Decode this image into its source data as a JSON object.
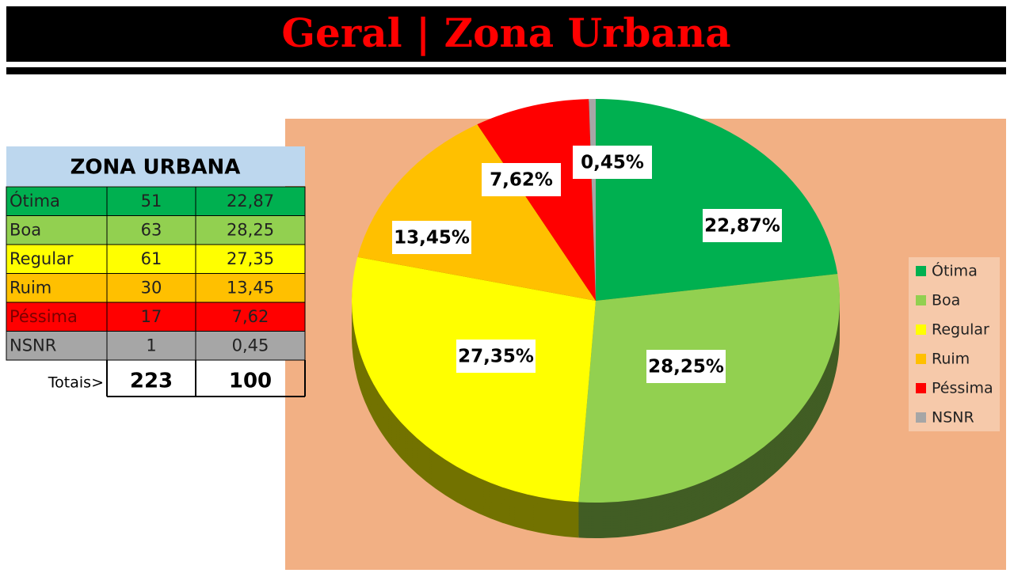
{
  "title": "Geral | Zona Urbana",
  "table": {
    "header": "ZONA URBANA",
    "rows": [
      [
        "Ótima",
        "51",
        "22,87"
      ],
      [
        "Boa",
        "63",
        "28,25"
      ],
      [
        "Regular",
        "61",
        "27,35"
      ],
      [
        "Ruim",
        "30",
        "13,45"
      ],
      [
        "Péssima",
        "17",
        "7,62"
      ],
      [
        "NSNR",
        "1",
        "0,45"
      ]
    ],
    "totals": [
      "Totais>",
      "223",
      "100"
    ]
  },
  "chart_data": {
    "type": "pie",
    "categories": [
      "Ótima",
      "Boa",
      "Regular",
      "Ruim",
      "Péssima",
      "NSNR"
    ],
    "values": [
      22.87,
      28.25,
      27.35,
      13.45,
      7.62,
      0.45
    ],
    "value_labels": [
      "22,87%",
      "28,25%",
      "27,35%",
      "13,45%",
      "7,62%",
      "0,45%"
    ],
    "colors": [
      "#00b050",
      "#92d050",
      "#ffff00",
      "#ffc000",
      "#ff0000",
      "#a6a6a6"
    ],
    "legend": "right"
  }
}
